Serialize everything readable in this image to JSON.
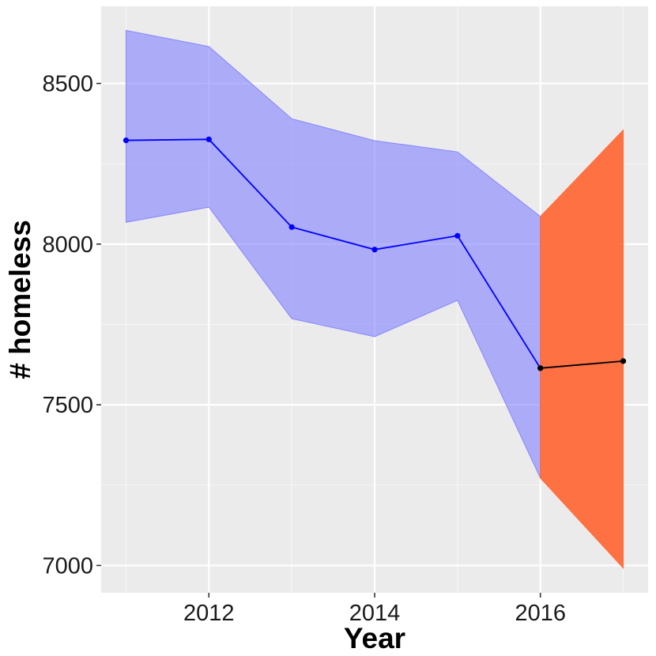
{
  "chart_data": {
    "type": "line",
    "title": "",
    "xlabel": "Year",
    "ylabel": "# homeless",
    "xlim": [
      2010.7,
      2017.3
    ],
    "ylim": [
      6915,
      8740
    ],
    "x_ticks_major": [
      2012,
      2014,
      2016
    ],
    "x_ticks_minor": [
      2011,
      2013,
      2015,
      2017
    ],
    "y_ticks_major": [
      7000,
      7500,
      8000,
      8500
    ],
    "y_ticks_minor": [
      7250,
      7750,
      8250
    ],
    "x_tick_labels": [
      "2012",
      "2014",
      "2016"
    ],
    "y_tick_labels": [
      "7000",
      "7500",
      "8000",
      "8500"
    ],
    "grid": true,
    "legend": "none",
    "series": [
      {
        "role": "observed",
        "color": "#0000ff",
        "band_color": "#8080ff",
        "points": [
          {
            "x": 2011,
            "y": 8323,
            "lower": 8068,
            "upper": 8665
          },
          {
            "x": 2012,
            "y": 8326,
            "lower": 8115,
            "upper": 8615
          },
          {
            "x": 2013,
            "y": 8053,
            "lower": 7768,
            "upper": 8390
          },
          {
            "x": 2014,
            "y": 7983,
            "lower": 7712,
            "upper": 8322
          },
          {
            "x": 2015,
            "y": 8026,
            "lower": 7825,
            "upper": 8287
          },
          {
            "x": 2016,
            "y": 7614,
            "lower": 7272,
            "upper": 8086
          }
        ]
      },
      {
        "role": "forecast",
        "color": "#000000",
        "band_color": "#ff6633",
        "points": [
          {
            "x": 2016,
            "y": 7614,
            "lower": 7272,
            "upper": 8086
          },
          {
            "x": 2017,
            "y": 7636,
            "lower": 6992,
            "upper": 8355
          }
        ]
      }
    ]
  }
}
